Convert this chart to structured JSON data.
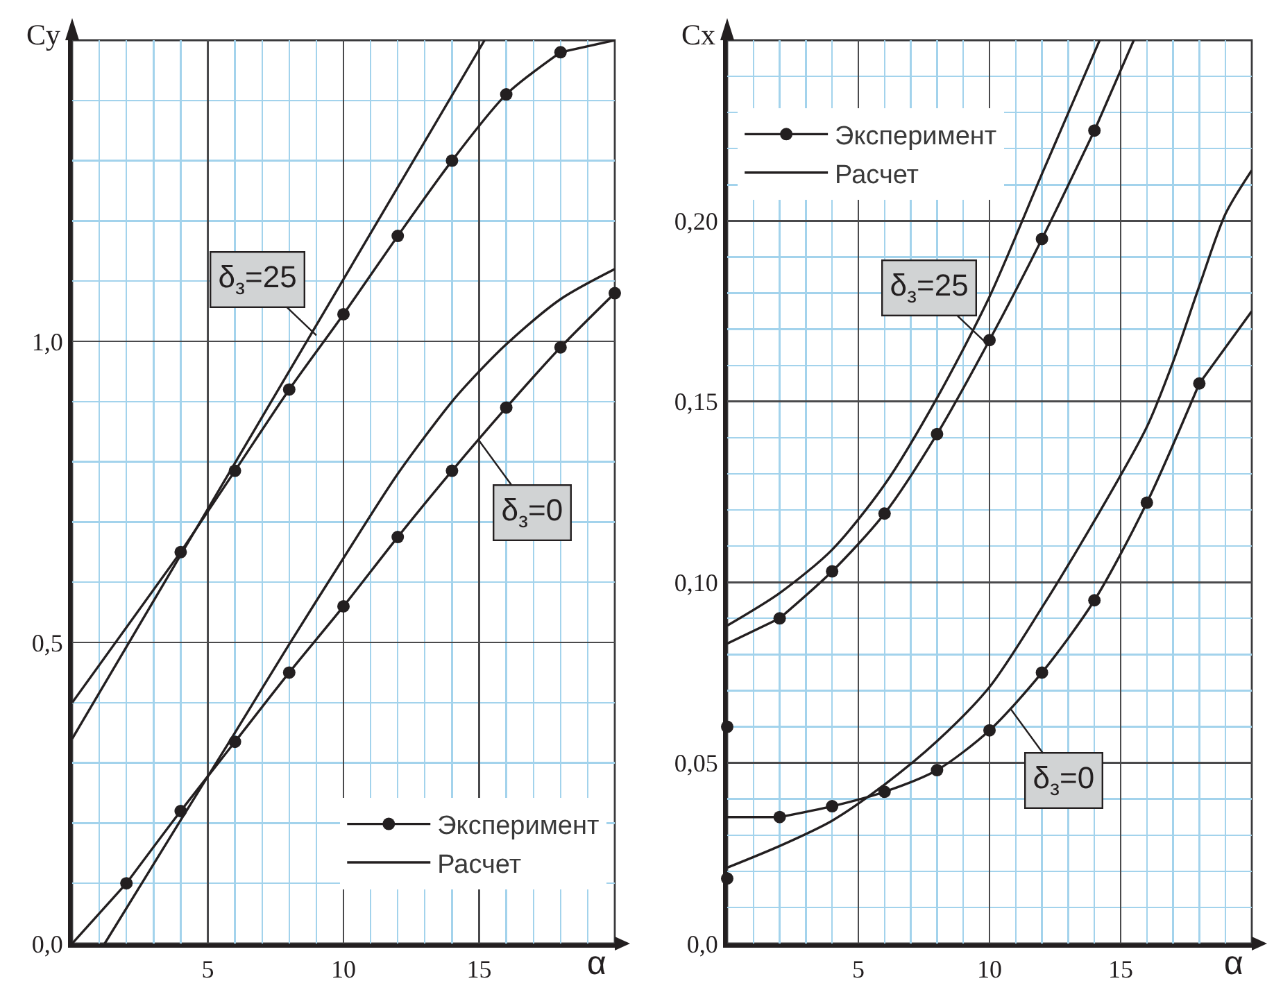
{
  "chart_data": [
    {
      "type": "line",
      "xlabel": "α",
      "ylabel": "Cy",
      "xlim": [
        0,
        20
      ],
      "ylim": [
        0,
        1.5
      ],
      "xticks": [
        {
          "value": 0,
          "label": null
        },
        {
          "value": 1,
          "label": null
        },
        {
          "value": 2,
          "label": null
        },
        {
          "value": 3,
          "label": null
        },
        {
          "value": 4,
          "label": null
        },
        5,
        {
          "value": 6,
          "label": null
        },
        {
          "value": 7,
          "label": null
        },
        {
          "value": 8,
          "label": null
        },
        {
          "value": 9,
          "label": null
        },
        10,
        {
          "value": 11,
          "label": null
        },
        {
          "value": 12,
          "label": null
        },
        {
          "value": 13,
          "label": null
        },
        {
          "value": 14,
          "label": null
        },
        15,
        {
          "value": 16,
          "label": null
        },
        {
          "value": 17,
          "label": null
        },
        {
          "value": 18,
          "label": null
        },
        {
          "value": 19,
          "label": null
        },
        {
          "value": 20,
          "label": null
        }
      ],
      "yticks": [
        {
          "value": 0,
          "label": "0,0"
        },
        {
          "value": 0.1,
          "label": null
        },
        {
          "value": 0.2,
          "label": null
        },
        {
          "value": 0.3,
          "label": null
        },
        {
          "value": 0.4,
          "label": null
        },
        {
          "value": 0.5,
          "label": "0,5"
        },
        {
          "value": 0.6,
          "label": null
        },
        {
          "value": 0.7,
          "label": null
        },
        {
          "value": 0.8,
          "label": null
        },
        {
          "value": 0.9,
          "label": null
        },
        {
          "value": 1.0,
          "label": "1,0"
        },
        {
          "value": 1.1,
          "label": null
        },
        {
          "value": 1.2,
          "label": null
        },
        {
          "value": 1.3,
          "label": null
        },
        {
          "value": 1.4,
          "label": null
        },
        {
          "value": 1.5,
          "label": null
        }
      ],
      "grid": true,
      "legend": "bottom right",
      "marker": "circle",
      "series": [
        {
          "name": "Эксперимент",
          "type": "line",
          "color": "#231f20",
          "x": [
            4,
            6,
            8,
            10,
            12,
            14,
            16,
            18
          ],
          "values": [
            0.65,
            0.785,
            0.92,
            1.045,
            1.175,
            1.3,
            1.41,
            1.48
          ]
        },
        {
          "name": "Расчет",
          "type": "line",
          "marker": "none",
          "color": "#231f20",
          "x": [
            0,
            15.2
          ],
          "values": [
            0.34,
            1.5
          ]
        },
        {
          "type": "line",
          "marker": "none",
          "color": "#231f20",
          "x": [
            0,
            4
          ],
          "values": [
            0.4,
            0.65
          ]
        },
        {
          "type": "line",
          "marker": "none",
          "color": "#231f20",
          "x": [
            18,
            20
          ],
          "values": [
            1.48,
            1.5
          ]
        },
        {
          "type": "line",
          "color": "#231f20",
          "x": [
            2,
            4,
            6,
            8,
            10,
            12,
            14,
            16,
            18,
            20
          ],
          "values": [
            0.1,
            0.22,
            0.335,
            0.45,
            0.56,
            0.675,
            0.785,
            0.89,
            0.99,
            1.08
          ]
        },
        {
          "type": "line",
          "marker": "none",
          "color": "#231f20",
          "x": [
            0,
            2
          ],
          "values": [
            0,
            0.1
          ]
        },
        {
          "type": "line",
          "marker": "none",
          "color": "#231f20",
          "x": [
            1.2,
            4,
            6,
            8,
            10,
            12,
            14,
            15,
            16,
            18,
            20
          ],
          "values": [
            0,
            0.205,
            0.35,
            0.497,
            0.64,
            0.78,
            0.9,
            0.95,
            0.995,
            1.07,
            1.12
          ]
        }
      ],
      "annotations": [
        {
          "text": "δ$_{з}$=25",
          "x": 9,
          "y": 1.01
        },
        {
          "text": "δ$_{з}$=0",
          "x": 15,
          "y": 0.835
        }
      ]
    },
    {
      "type": "line",
      "xlabel": "α",
      "ylabel": "Cx",
      "xlim": [
        0,
        20
      ],
      "ylim": [
        0,
        0.25
      ],
      "xticks": [
        {
          "value": 0,
          "label": null
        },
        {
          "value": 1,
          "label": null
        },
        {
          "value": 2,
          "label": null
        },
        {
          "value": 3,
          "label": null
        },
        {
          "value": 4,
          "label": null
        },
        5,
        {
          "value": 6,
          "label": null
        },
        {
          "value": 7,
          "label": null
        },
        {
          "value": 8,
          "label": null
        },
        {
          "value": 9,
          "label": null
        },
        10,
        {
          "value": 11,
          "label": null
        },
        {
          "value": 12,
          "label": null
        },
        {
          "value": 13,
          "label": null
        },
        {
          "value": 14,
          "label": null
        },
        15,
        {
          "value": 16,
          "label": null
        },
        {
          "value": 17,
          "label": null
        },
        {
          "value": 18,
          "label": null
        },
        {
          "value": 19,
          "label": null
        },
        {
          "value": 20,
          "label": null
        }
      ],
      "yticks": [
        {
          "value": 0,
          "label": "0,0"
        },
        {
          "value": 0.01,
          "label": null
        },
        {
          "value": 0.02,
          "label": null
        },
        {
          "value": 0.03,
          "label": null
        },
        {
          "value": 0.04,
          "label": null
        },
        {
          "value": 0.05,
          "label": "0,05"
        },
        {
          "value": 0.06,
          "label": null
        },
        {
          "value": 0.07,
          "label": null
        },
        {
          "value": 0.08,
          "label": null
        },
        {
          "value": 0.09,
          "label": null
        },
        {
          "value": 0.1,
          "label": "0,10"
        },
        {
          "value": 0.11,
          "label": null
        },
        {
          "value": 0.12,
          "label": null
        },
        {
          "value": 0.13,
          "label": null
        },
        {
          "value": 0.14,
          "label": null
        },
        {
          "value": 0.15,
          "label": "0,15"
        },
        {
          "value": 0.16,
          "label": null
        },
        {
          "value": 0.17,
          "label": null
        },
        {
          "value": 0.18,
          "label": null
        },
        {
          "value": 0.19,
          "label": null
        },
        {
          "value": 0.2,
          "label": "0,20"
        },
        {
          "value": 0.21,
          "label": null
        },
        {
          "value": 0.22,
          "label": null
        },
        {
          "value": 0.23,
          "label": null
        },
        {
          "value": 0.24,
          "label": null
        },
        {
          "value": 0.25,
          "label": null
        }
      ],
      "grid": true,
      "legend": "top left",
      "marker": "circle",
      "series": [
        {
          "name": "Эксперимент",
          "type": "line",
          "color": "#231f20",
          "x": [
            2,
            4,
            6,
            8,
            10,
            12,
            14
          ],
          "values": [
            0.09,
            0.103,
            0.119,
            0.141,
            0.167,
            0.195,
            0.225
          ]
        },
        {
          "name": "Расчет",
          "type": "line",
          "marker": "none",
          "color": "#231f20",
          "x": [
            0,
            2,
            4,
            6,
            8,
            10,
            12,
            14.2
          ],
          "values": [
            0.088,
            0.097,
            0.109,
            0.127,
            0.151,
            0.179,
            0.213,
            0.25
          ]
        },
        {
          "type": "line",
          "marker": "none",
          "color": "#231f20",
          "x": [
            0,
            2
          ],
          "values": [
            0.083,
            0.09
          ]
        },
        {
          "type": "line",
          "marker": "none",
          "color": "#231f20",
          "x": [
            14,
            15.5
          ],
          "values": [
            0.225,
            0.25
          ]
        },
        {
          "type": "line",
          "color": "#231f20",
          "x": [
            2,
            4,
            6,
            8,
            10,
            12,
            14,
            16,
            18
          ],
          "values": [
            0.035,
            0.038,
            0.042,
            0.048,
            0.059,
            0.075,
            0.095,
            0.122,
            0.155
          ]
        },
        {
          "type": "line",
          "marker": "none",
          "color": "#231f20",
          "x": [
            0,
            2
          ],
          "values": [
            0.035,
            0.035
          ]
        },
        {
          "type": "line",
          "marker": "none",
          "color": "#231f20",
          "x": [
            18,
            20
          ],
          "values": [
            0.155,
            0.175
          ]
        },
        {
          "type": "line",
          "marker": "none",
          "color": "#231f20",
          "x": [
            0,
            2,
            4,
            6,
            8,
            10,
            12,
            14,
            16,
            17,
            18,
            19,
            20
          ],
          "values": [
            0.021,
            0.027,
            0.034,
            0.044,
            0.056,
            0.071,
            0.093,
            0.117,
            0.143,
            0.161,
            0.182,
            0.202,
            0.214
          ]
        },
        {
          "type": "scatter",
          "color": "#231f20",
          "x": [
            0,
            0
          ],
          "values": [
            0.06,
            0.018
          ]
        }
      ],
      "annotations": [
        {
          "text": "δ$_{з}$=25",
          "x": 9.9,
          "y": 0.166
        },
        {
          "text": "δ$_{з}$=0",
          "x": 10.8,
          "y": 0.065
        }
      ]
    }
  ]
}
